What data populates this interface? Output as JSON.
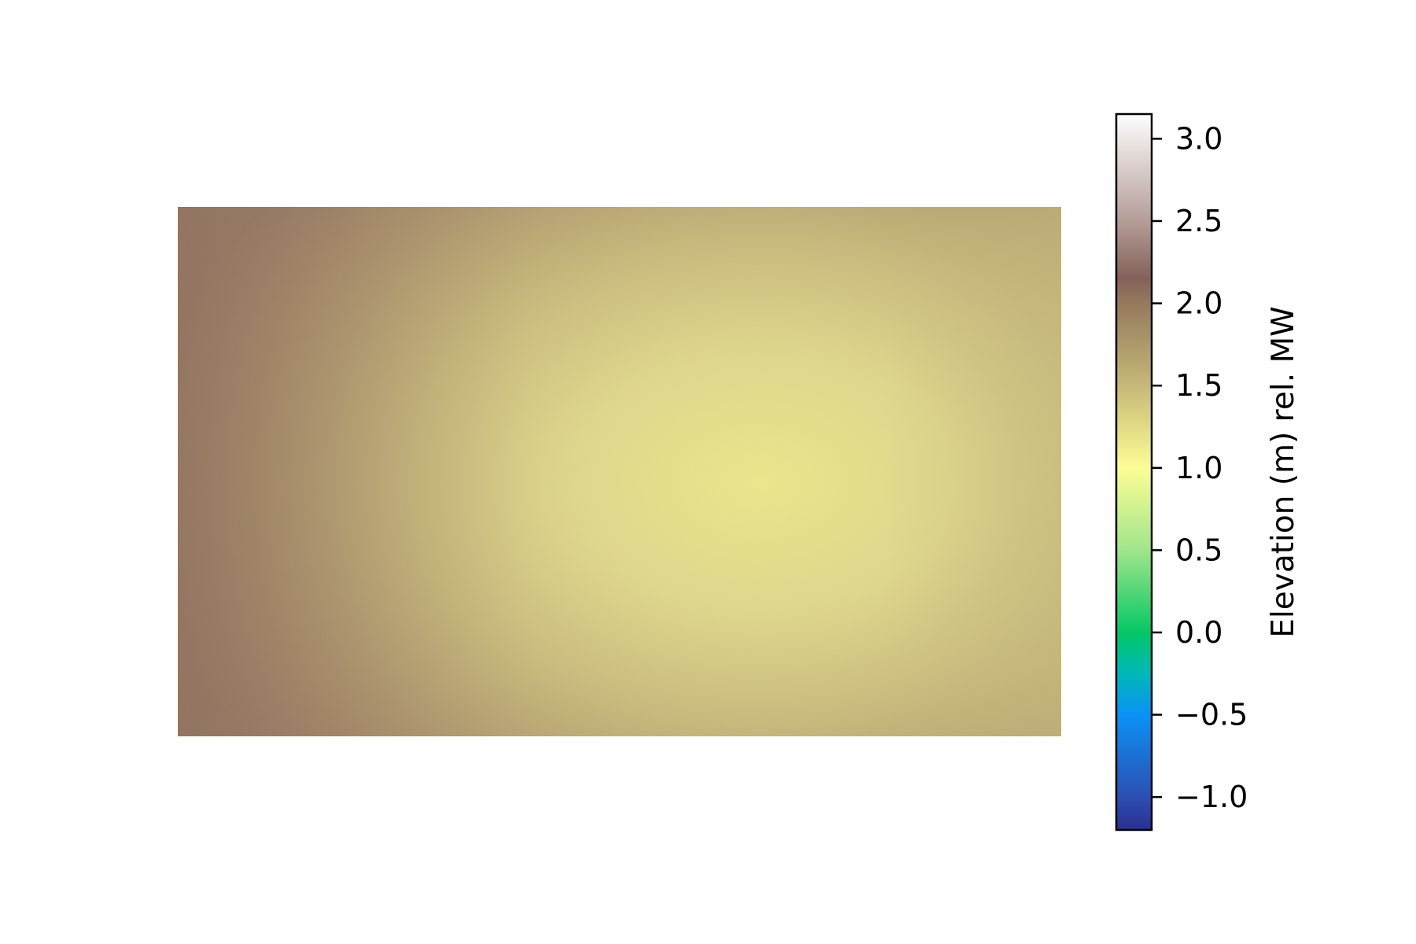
{
  "chart_data": {
    "type": "heatmap",
    "title": "",
    "axes_visible": false,
    "colormap": "terrain",
    "colorbar": {
      "label": "Elevation (m) rel. MW",
      "range": [
        -1.2,
        3.15
      ],
      "ticks": [
        -1.0,
        -0.5,
        0.0,
        0.5,
        1.0,
        1.5,
        2.0,
        2.5,
        3.0
      ],
      "tick_labels": [
        "−1.0",
        "−0.5",
        "0.0",
        "0.5",
        "1.0",
        "1.5",
        "2.0",
        "2.5",
        "3.0"
      ],
      "color_stops": [
        {
          "value": -1.2,
          "color": "#2b2f91"
        },
        {
          "value": -1.0,
          "color": "#2c4fb3"
        },
        {
          "value": -0.5,
          "color": "#0b92f5"
        },
        {
          "value": -0.25,
          "color": "#00b8b8"
        },
        {
          "value": 0.0,
          "color": "#04c765"
        },
        {
          "value": 0.5,
          "color": "#a0e68a"
        },
        {
          "value": 1.0,
          "color": "#fdfd95"
        },
        {
          "value": 1.5,
          "color": "#c6b878"
        },
        {
          "value": 2.0,
          "color": "#947a5c"
        },
        {
          "value": 2.15,
          "color": "#83615a"
        },
        {
          "value": 2.5,
          "color": "#b59d98"
        },
        {
          "value": 3.15,
          "color": "#fefefe"
        }
      ]
    },
    "surface": {
      "description_values": {
        "left_edge_middle": 2.02,
        "left_edge_corners": 1.9,
        "center_right_peak_low": 1.15,
        "right_edge": 1.45,
        "top_right_corner": 1.5,
        "bottom_edge_middle": 1.75
      }
    }
  }
}
